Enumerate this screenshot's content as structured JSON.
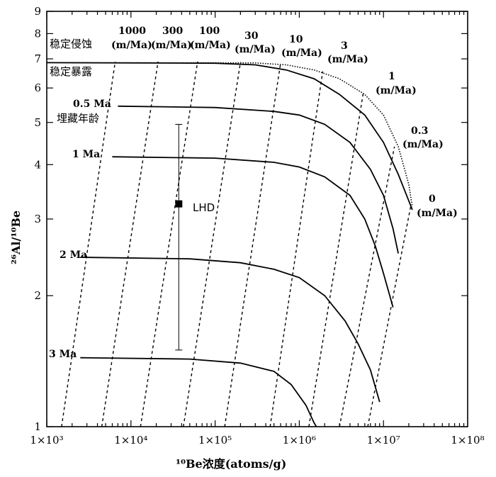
{
  "chart_data": {
    "type": "line",
    "title": "",
    "xlabel": "¹⁰Be浓度(atoms/g)",
    "ylabel": "²⁶Al/¹⁰Be",
    "xscale": "log",
    "yscale": "log",
    "xlim": [
      1000,
      100000000
    ],
    "ylim": [
      1,
      9
    ],
    "x_ticks": [
      {
        "value": 1000,
        "label": "1×10³"
      },
      {
        "value": 10000,
        "label": "1×10⁴"
      },
      {
        "value": 100000,
        "label": "1×10⁵"
      },
      {
        "value": 1000000,
        "label": "1×10⁶"
      },
      {
        "value": 10000000,
        "label": "1×10⁷"
      },
      {
        "value": 100000000,
        "label": "1×10⁸"
      }
    ],
    "y_ticks": [
      {
        "value": 1,
        "label": "1"
      },
      {
        "value": 2,
        "label": "2"
      },
      {
        "value": 3,
        "label": "3"
      },
      {
        "value": 4,
        "label": "4"
      },
      {
        "value": 5,
        "label": "5"
      },
      {
        "value": 6,
        "label": "6"
      },
      {
        "value": 7,
        "label": "7"
      },
      {
        "value": 8,
        "label": "8"
      },
      {
        "value": 9,
        "label": "9"
      }
    ],
    "steady_erosion_line": {
      "name": "稳定侵蚀",
      "points": [
        [
          1000,
          6.86
        ],
        [
          100000,
          6.84
        ],
        [
          300000,
          6.78
        ],
        [
          700000,
          6.6
        ],
        [
          1500000,
          6.3
        ],
        [
          3000000,
          5.8
        ],
        [
          6000000,
          5.2
        ],
        [
          10000000,
          4.5
        ],
        [
          15000000,
          3.8
        ],
        [
          20000000,
          3.3
        ],
        [
          22000000,
          3.15
        ]
      ]
    },
    "steady_exposure_line": {
      "name": "稳定暴露",
      "points": [
        [
          1000,
          6.86
        ],
        [
          300000,
          6.85
        ],
        [
          700000,
          6.78
        ],
        [
          1500000,
          6.6
        ],
        [
          3000000,
          6.3
        ],
        [
          6000000,
          5.8
        ],
        [
          10000000,
          5.2
        ],
        [
          15000000,
          4.4
        ],
        [
          20000000,
          3.6
        ],
        [
          22000000,
          3.2
        ]
      ]
    },
    "burial_isochrons": [
      {
        "name": "0.5 Ma",
        "points": [
          [
            7000,
            5.45
          ],
          [
            100000,
            5.41
          ],
          [
            500000,
            5.3
          ],
          [
            1000000,
            5.2
          ],
          [
            2000000,
            4.95
          ],
          [
            4000000,
            4.5
          ],
          [
            7000000,
            3.9
          ],
          [
            10000000,
            3.4
          ],
          [
            13000000,
            2.85
          ],
          [
            15000000,
            2.5
          ]
        ]
      },
      {
        "name": "1 Ma",
        "points": [
          [
            6000,
            4.17
          ],
          [
            100000,
            4.14
          ],
          [
            500000,
            4.05
          ],
          [
            1000000,
            3.95
          ],
          [
            2000000,
            3.75
          ],
          [
            4000000,
            3.4
          ],
          [
            6000000,
            3.0
          ],
          [
            8000000,
            2.6
          ],
          [
            10000000,
            2.25
          ],
          [
            13000000,
            1.88
          ]
        ]
      },
      {
        "name": "2 Ma",
        "points": [
          [
            2500,
            2.45
          ],
          [
            50000,
            2.43
          ],
          [
            200000,
            2.38
          ],
          [
            500000,
            2.3
          ],
          [
            1000000,
            2.2
          ],
          [
            2000000,
            2.0
          ],
          [
            3500000,
            1.75
          ],
          [
            5000000,
            1.55
          ],
          [
            7000000,
            1.35
          ],
          [
            9000000,
            1.14
          ]
        ]
      },
      {
        "name": "3 Ma",
        "points": [
          [
            2500,
            1.44
          ],
          [
            50000,
            1.43
          ],
          [
            200000,
            1.4
          ],
          [
            500000,
            1.34
          ],
          [
            800000,
            1.25
          ],
          [
            1200000,
            1.12
          ],
          [
            1500000,
            1.02
          ],
          [
            1600000,
            1.0
          ]
        ]
      }
    ],
    "erosion_rate_lines": [
      {
        "label": "1000",
        "unit": "(m/Ma)",
        "points": [
          [
            1500,
            1.0
          ],
          [
            6500,
            6.9
          ]
        ]
      },
      {
        "label": "300",
        "unit": "(m/Ma)",
        "points": [
          [
            4500,
            1.0
          ],
          [
            21000,
            6.9
          ]
        ]
      },
      {
        "label": "100",
        "unit": "(m/Ma)",
        "points": [
          [
            13000,
            1.0
          ],
          [
            62000,
            6.9
          ]
        ]
      },
      {
        "label": "30",
        "unit": "(m/Ma)",
        "points": [
          [
            42000,
            1.0
          ],
          [
            200000,
            6.88
          ]
        ]
      },
      {
        "label": "10",
        "unit": "(m/Ma)",
        "points": [
          [
            130000,
            1.0
          ],
          [
            600000,
            6.84
          ]
        ]
      },
      {
        "label": "3",
        "unit": "(m/Ma)",
        "points": [
          [
            450000,
            1.0
          ],
          [
            1900000,
            6.55
          ]
        ]
      },
      {
        "label": "1",
        "unit": "(m/Ma)",
        "points": [
          [
            1300000,
            1.0
          ],
          [
            5800000,
            5.9
          ]
        ]
      },
      {
        "label": "0.3",
        "unit": "(m/Ma)",
        "points": [
          [
            3000000,
            1.0
          ],
          [
            13500000,
            4.4
          ]
        ]
      },
      {
        "label": "0",
        "unit": "(m/Ma)",
        "points": [
          [
            6500000,
            1.0
          ],
          [
            21000000,
            3.2
          ]
        ]
      }
    ],
    "sample": {
      "name": "LHD",
      "x": 37000,
      "y": 3.25,
      "y_low": 1.5,
      "y_high": 4.95
    },
    "labels": {
      "steady_erosion": "稳定侵蚀",
      "steady_exposure": "稳定暴露",
      "burial_age": "埋藏年龄",
      "iso_05": "0.5 Ma",
      "iso_1": "1 Ma",
      "iso_2": "2 Ma",
      "iso_3": "3 Ma",
      "rate_1000": "1000",
      "rate_300": "300",
      "rate_100": "100",
      "rate_30": "30",
      "rate_10": "10",
      "rate_3": "3",
      "rate_1": "1",
      "rate_03": "0.3",
      "rate_0": "0",
      "unit": "(m/Ma)",
      "sample": "LHD"
    }
  }
}
